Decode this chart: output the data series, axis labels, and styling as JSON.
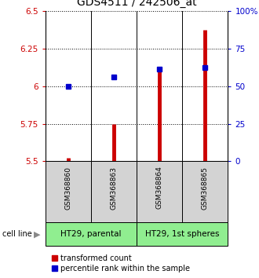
{
  "title": "GDS4511 / 242506_at",
  "samples": [
    "GSM368860",
    "GSM368863",
    "GSM368864",
    "GSM368865"
  ],
  "red_values": [
    5.525,
    5.75,
    6.12,
    6.375
  ],
  "blue_values": [
    6.0,
    6.06,
    6.115,
    6.125
  ],
  "ylim": [
    5.5,
    6.5
  ],
  "yticks_left": [
    5.5,
    5.75,
    6.0,
    6.25,
    6.5
  ],
  "yticks_right": [
    0,
    25,
    50,
    75,
    100
  ],
  "ytick_labels_left": [
    "5.5",
    "5.75",
    "6",
    "6.25",
    "6.5"
  ],
  "ytick_labels_right": [
    "0",
    "25",
    "50",
    "75",
    "100%"
  ],
  "cell_lines": [
    "HT29, parental",
    "HT29, 1st spheres"
  ],
  "cell_line_color": "#90EE90",
  "sample_bg_color": "#d3d3d3",
  "red_color": "#cc0000",
  "blue_color": "#0000cc",
  "title_fontsize": 10,
  "tick_fontsize": 7.5,
  "label_color_left": "#cc0000",
  "label_color_right": "#0000cc",
  "base_value": 5.5,
  "legend_fontsize": 7,
  "cell_line_fontsize": 7.5,
  "sample_fontsize": 6.5
}
